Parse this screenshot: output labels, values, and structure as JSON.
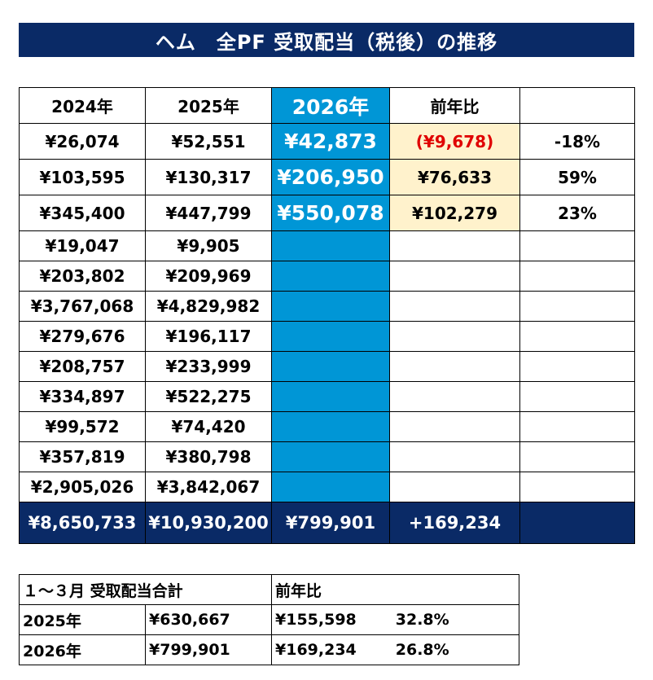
{
  "title": "ヘム　全PF 受取配当（税後）の推移",
  "headers": [
    "2024年",
    "2025年",
    "2026年",
    "前年比",
    ""
  ],
  "rows": [
    [
      "¥26,074",
      "¥52,551",
      "¥42,873",
      "(¥9,678)",
      "-18%"
    ],
    [
      "¥103,595",
      "¥130,317",
      "¥206,950",
      "¥76,633",
      "59%"
    ],
    [
      "¥345,400",
      "¥447,799",
      "¥550,078",
      "¥102,279",
      "23%"
    ],
    [
      "¥19,047",
      "¥9,905",
      "",
      "",
      ""
    ],
    [
      "¥203,802",
      "¥209,969",
      "",
      "",
      ""
    ],
    [
      "¥3,767,068",
      "¥4,829,982",
      "",
      "",
      ""
    ],
    [
      "¥279,676",
      "¥196,117",
      "",
      "",
      ""
    ],
    [
      "¥208,757",
      "¥233,999",
      "",
      "",
      ""
    ],
    [
      "¥334,897",
      "¥522,275",
      "",
      "",
      ""
    ],
    [
      "¥99,572",
      "¥74,420",
      "",
      "",
      ""
    ],
    [
      "¥357,819",
      "¥380,798",
      "",
      "",
      ""
    ],
    [
      "¥2,905,026",
      "¥3,842,067",
      "",
      "",
      ""
    ]
  ],
  "total": [
    "¥8,650,733",
    "¥10,930,200",
    "¥799,901",
    "+169,234",
    ""
  ],
  "summary": {
    "header_label": "１～３月 受取配当合計",
    "header_compare": "前年比",
    "rows": [
      {
        "year": "2025年",
        "amount": "¥630,667",
        "diff": "¥155,598",
        "pct": "32.8%"
      },
      {
        "year": "2026年",
        "amount": "¥799,901",
        "diff": "¥169,234",
        "pct": "26.8%"
      }
    ]
  },
  "colors": {
    "navy": "#0a2a66",
    "blue": "#0096d6",
    "yellow": "#fff2cc",
    "negative": "#e00000"
  }
}
